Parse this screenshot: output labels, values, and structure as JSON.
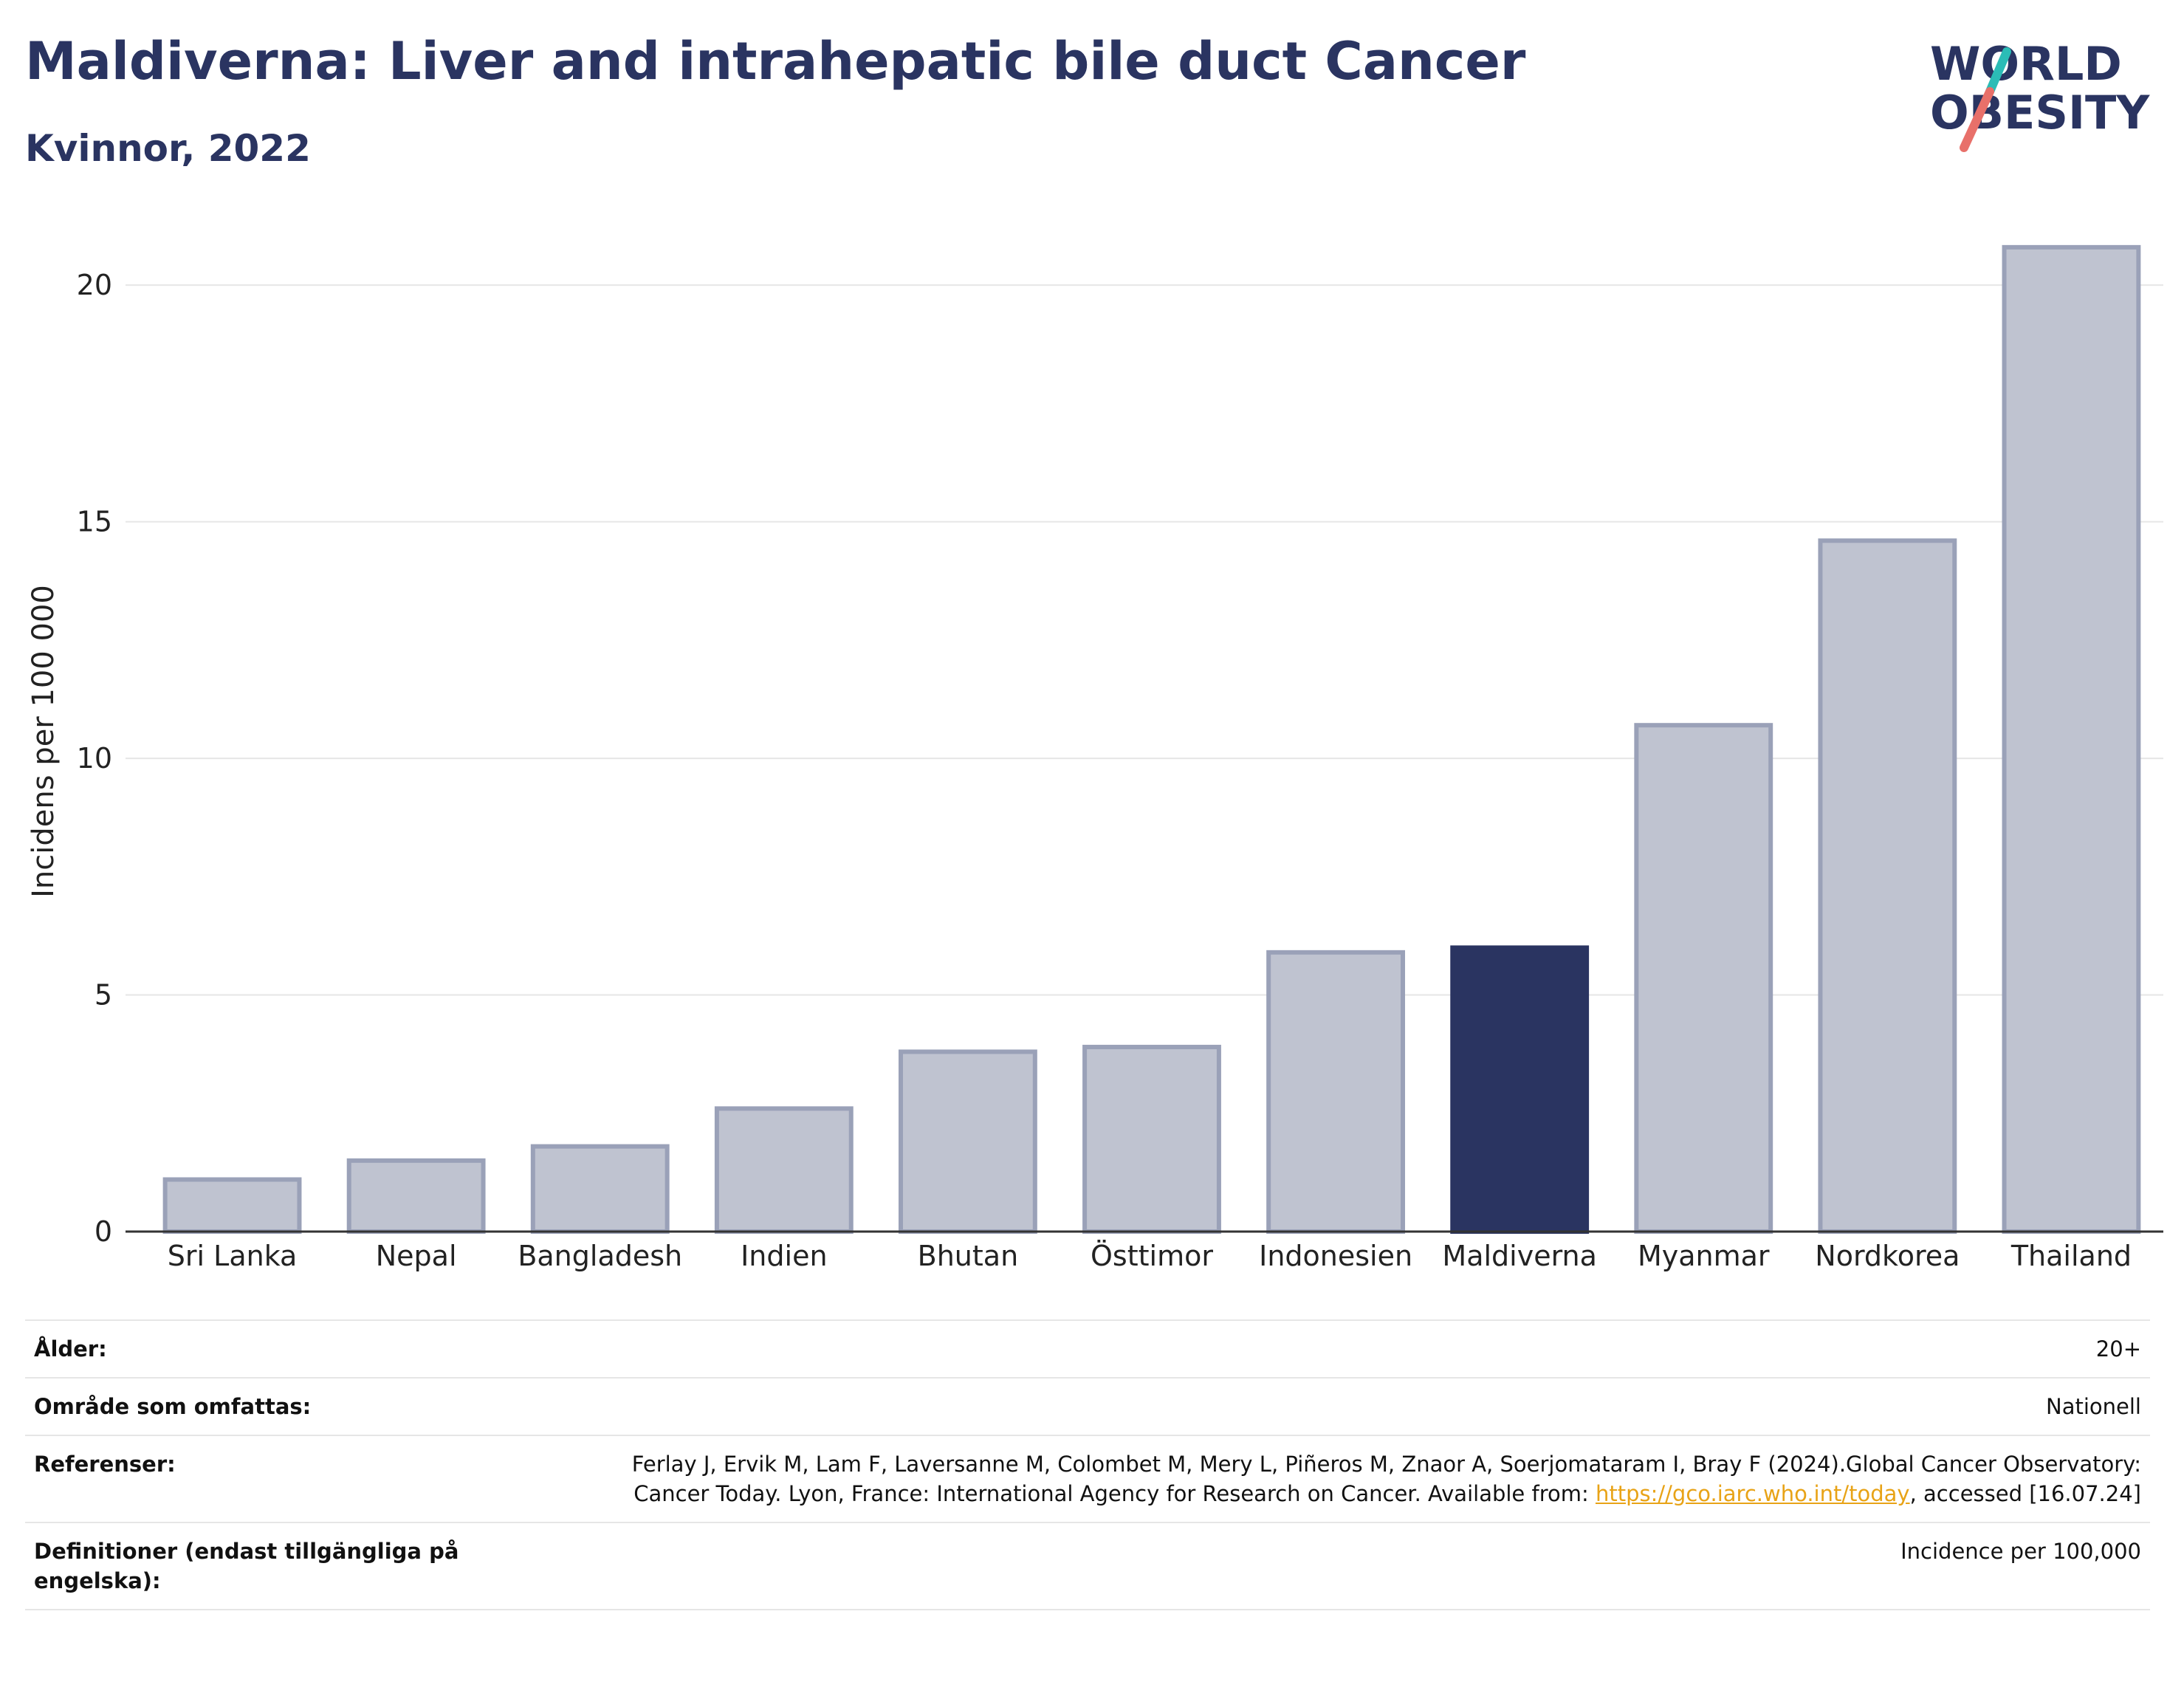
{
  "header": {
    "title": "Maldiverna: Liver and intrahepatic bile duct Cancer",
    "subtitle": "Kvinnor, 2022"
  },
  "logo": {
    "line1": "WORLD",
    "line2": "OBESITY"
  },
  "colors": {
    "highlight": "#2a3461",
    "bar_fill": "#bfc3d0",
    "bar_stroke": "#9aa1b8",
    "logo_teal": "#2bbcb6",
    "logo_coral": "#e8706a",
    "link": "#e8a317"
  },
  "chart_data": {
    "type": "bar",
    "ylabel": "Incidens per 100 000",
    "ylim": [
      0,
      21.5
    ],
    "yticks": [
      0,
      5,
      10,
      15,
      20
    ],
    "grid": true,
    "categories": [
      "Sri Lanka",
      "Nepal",
      "Bangladesh",
      "Indien",
      "Bhutan",
      "Östtimor",
      "Indonesien",
      "Maldiverna",
      "Myanmar",
      "Nordkorea",
      "Thailand"
    ],
    "values": [
      1.1,
      1.5,
      1.8,
      2.6,
      3.8,
      3.9,
      5.9,
      6.0,
      10.7,
      14.6,
      20.8
    ],
    "highlight": "Maldiverna"
  },
  "info": {
    "age": {
      "label": "Ålder:",
      "value": "20+"
    },
    "area": {
      "label": "Område som omfattas:",
      "value": "Nationell"
    },
    "references": {
      "label": "Referenser:",
      "text_before": "Ferlay J, Ervik M, Lam F, Laversanne M, Colombet M, Mery L, Piñeros M, Znaor A, Soerjomataram I, Bray F (2024).Global Cancer Observatory: Cancer Today. Lyon, France: International Agency for Research on Cancer. Available from: ",
      "link": "https://gco.iarc.who.int/today",
      "text_after": ", accessed [16.07.24]"
    },
    "definitions": {
      "label": "Definitioner (endast tillgängliga på engelska):",
      "value": "Incidence per 100,000"
    }
  }
}
